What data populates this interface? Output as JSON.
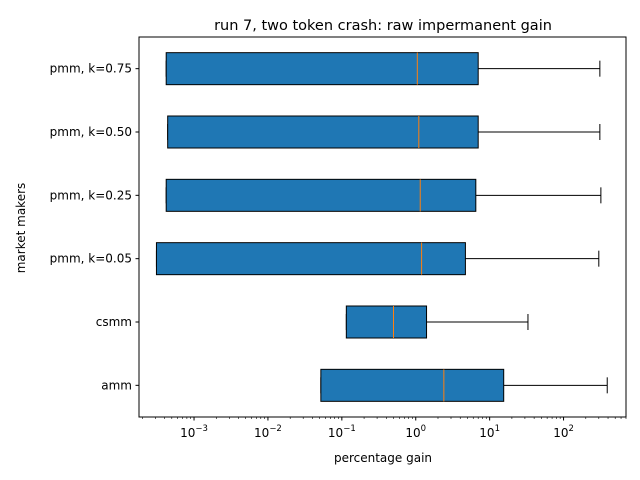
{
  "chart_data": {
    "type": "boxplot",
    "orientation": "horizontal",
    "title": "run 7, two token crash: raw impermanent gain",
    "xlabel": "percentage gain",
    "ylabel": "market makers",
    "xscale": "log",
    "xlim": [
      0.00018,
      700
    ],
    "grid": false,
    "legend": "none",
    "x_tick_labels": [
      {
        "base": "10",
        "exp": "−3",
        "value": 0.001
      },
      {
        "base": "10",
        "exp": "−2",
        "value": 0.01
      },
      {
        "base": "10",
        "exp": "−1",
        "value": 0.1
      },
      {
        "base": "10",
        "exp": "0",
        "value": 1
      },
      {
        "base": "10",
        "exp": "1",
        "value": 10
      },
      {
        "base": "10",
        "exp": "2",
        "value": 100
      }
    ],
    "categories": [
      "amm",
      "csmm",
      "pmm, k=0.05",
      "pmm, k=0.25",
      "pmm, k=0.50",
      "pmm, k=0.75"
    ],
    "boxes": [
      {
        "label": "amm",
        "whislo": 0.052,
        "q1": 0.052,
        "median": 2.4,
        "q3": 15.5,
        "whishi": 390
      },
      {
        "label": "csmm",
        "whislo": 0.115,
        "q1": 0.115,
        "median": 0.5,
        "q3": 1.4,
        "whishi": 33
      },
      {
        "label": "pmm, k=0.05",
        "whislo": 0.00031,
        "q1": 0.00031,
        "median": 1.2,
        "q3": 4.7,
        "whishi": 300
      },
      {
        "label": "pmm, k=0.25",
        "whislo": 0.00042,
        "q1": 0.00042,
        "median": 1.15,
        "q3": 6.5,
        "whishi": 320
      },
      {
        "label": "pmm, k=0.50",
        "whislo": 0.00044,
        "q1": 0.00044,
        "median": 1.1,
        "q3": 7.0,
        "whishi": 310
      },
      {
        "label": "pmm, k=0.75",
        "whislo": 0.00042,
        "q1": 0.00042,
        "median": 1.05,
        "q3": 7.0,
        "whishi": 310
      }
    ],
    "colors": {
      "box_fill": "#1f77b4",
      "median": "#ff7f0e",
      "edge": "#000000"
    }
  }
}
